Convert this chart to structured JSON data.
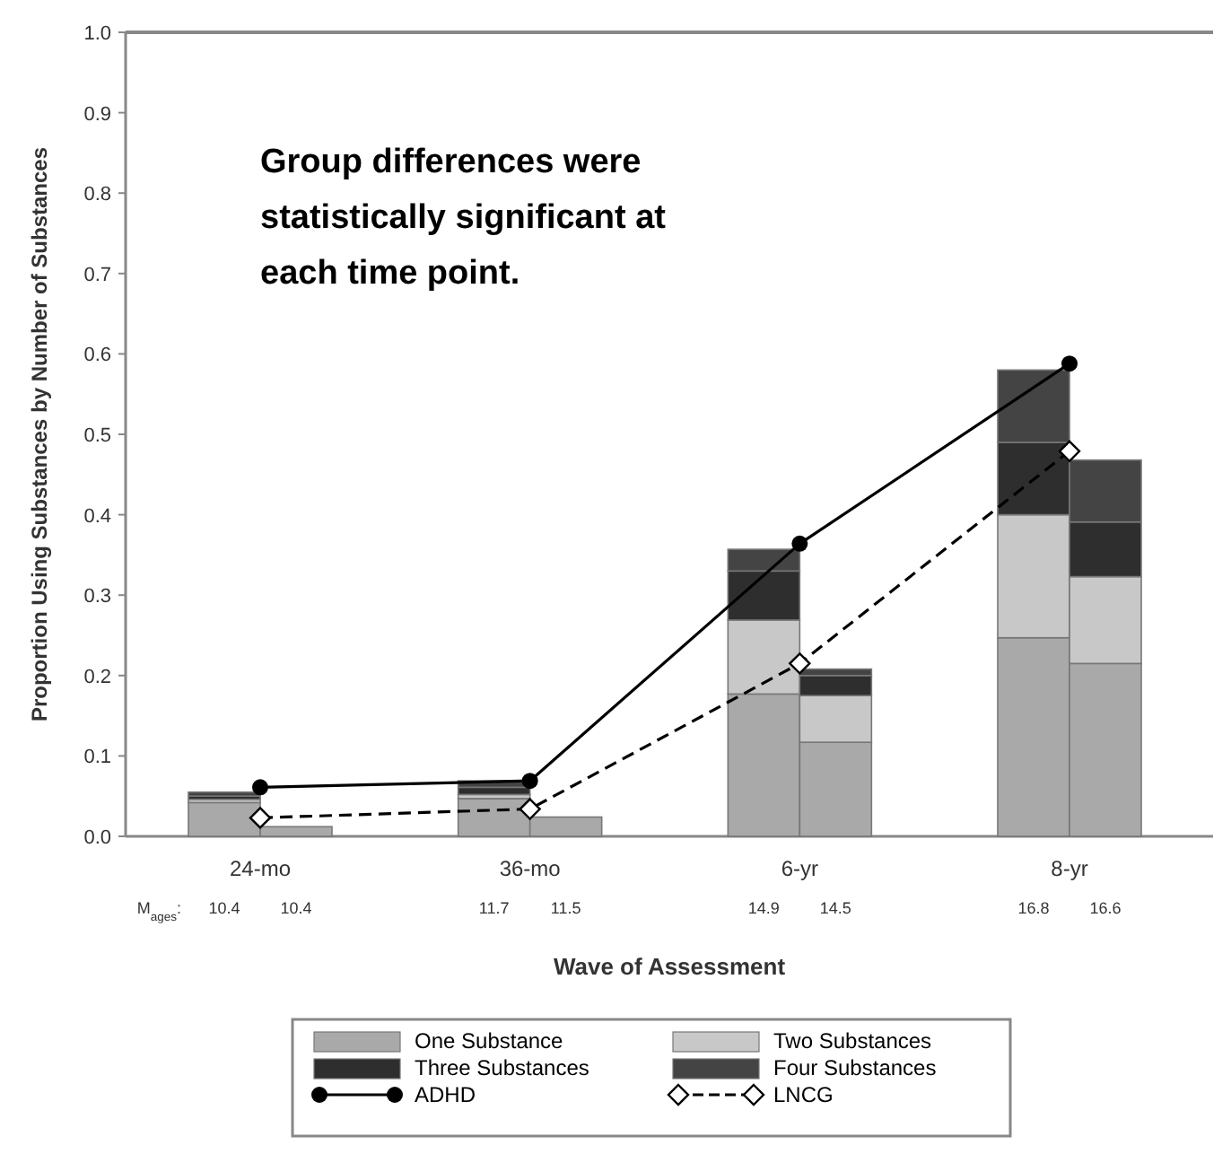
{
  "chart_data": {
    "type": "bar",
    "stacked": true,
    "xlabel": "Wave of Assessment",
    "ylabel": "Proportion Using Substances by Number of Substances",
    "categories": [
      "10.4",
      "10.4",
      "11.7",
      "11.5",
      "14.9",
      "14.5",
      "16.8",
      "16.6"
    ],
    "ylim": [
      0,
      1
    ],
    "yticks": [
      {
        "value": 0,
        "label": "0.0"
      },
      {
        "value": 0.1,
        "label": "0.1"
      },
      {
        "value": 0.2,
        "label": "0.2"
      },
      {
        "value": 0.3,
        "label": "0.3"
      },
      {
        "value": 0.4,
        "label": "0.4"
      },
      {
        "value": 0.5,
        "label": "0.5"
      },
      {
        "value": 0.6,
        "label": "0.6"
      },
      {
        "value": 0.7,
        "label": "0.7"
      },
      {
        "value": 0.8,
        "label": "0.8"
      },
      {
        "value": 0.9,
        "label": "0.9"
      },
      {
        "value": 1,
        "label": "1.0"
      }
    ],
    "series": [
      {
        "name": "One Substance",
        "color": "#a9a9a9",
        "values": [
          0.042,
          0.012,
          0.047,
          0.024,
          0.177,
          0.117,
          0.247,
          0.215
        ]
      },
      {
        "name": "Two Substances",
        "color": "#c8c8c8",
        "values": [
          0.004,
          null,
          0.005,
          null,
          0.092,
          0.058,
          0.153,
          0.108
        ]
      },
      {
        "name": "Three Substances",
        "color": "#2e2e2e",
        "values": [
          0.004,
          null,
          0.009,
          null,
          0.061,
          0.025,
          0.09,
          0.068
        ]
      },
      {
        "name": "Four Substances",
        "color": "#444444",
        "values": [
          0.005,
          null,
          0.008,
          null,
          0.027,
          0.008,
          0.09,
          0.077
        ]
      },
      {
        "name": "ADHD",
        "type": "line",
        "color": "#000000",
        "marker": "circle",
        "line_style": "solid",
        "values": [
          0.061,
          null,
          0.069,
          null,
          0.364,
          null,
          0.588,
          null
        ]
      },
      {
        "name": "LNCG",
        "type": "line",
        "color": "#000000",
        "marker": "diamond",
        "line_style": "dashed",
        "values": [
          null,
          0.023,
          null,
          0.034,
          null,
          0.215,
          null,
          0.479
        ]
      }
    ],
    "annotations": [
      "Group differences were statistically significant at each time point.",
      "24-mo",
      "36-mo",
      "6-yr",
      "8-yr",
      "M$_{ages}$:"
    ],
    "legend": "bottom"
  }
}
